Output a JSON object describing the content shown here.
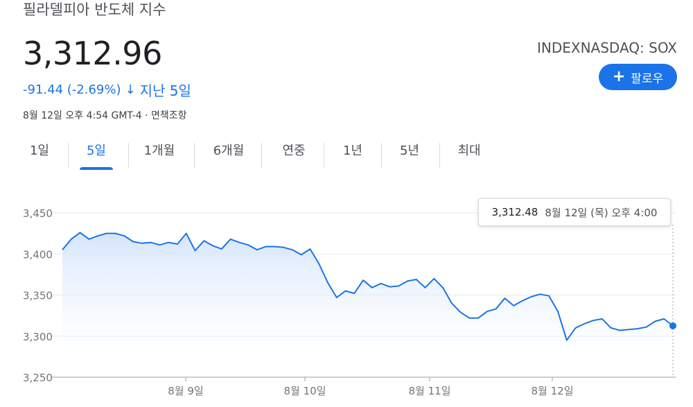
{
  "header": {
    "title": "필라델피아 반도체 지수",
    "price": "3,312.96",
    "change": "-91.44 (-2.69%)",
    "change_arrow": "↓",
    "change_period": "지난 5일",
    "meta": "8월 12일 오후 4:54 GMT-4 · 면책조항",
    "ticker": "INDEXNASDAQ: SOX",
    "follow_label": "팔로우"
  },
  "colors": {
    "accent": "#1a73e8",
    "line": "#1a73e8",
    "fill_top": "#d2e3fc",
    "grid": "#e8eaed"
  },
  "tabs": [
    {
      "label": "1일",
      "active": false
    },
    {
      "label": "5일",
      "active": true
    },
    {
      "label": "1개월",
      "active": false
    },
    {
      "label": "6개월",
      "active": false
    },
    {
      "label": "연중",
      "active": false
    },
    {
      "label": "1년",
      "active": false
    },
    {
      "label": "5년",
      "active": false
    },
    {
      "label": "최대",
      "active": false
    }
  ],
  "tooltip": {
    "value": "3,312.48",
    "date": "8월 12일 (목) 오후 4:00"
  },
  "chart_data": {
    "type": "area",
    "ylim": [
      3250,
      3450
    ],
    "yticks": [
      3450,
      3400,
      3350,
      3300,
      3250
    ],
    "ytick_labels": [
      "3,450",
      "3,400",
      "3,350",
      "3,300",
      "3,250"
    ],
    "xticks": [
      {
        "label": "8월 9일",
        "x": 13
      },
      {
        "label": "8월 10일",
        "x": 26
      },
      {
        "label": "8월 11일",
        "x": 39
      },
      {
        "label": "8월 12일",
        "x": 52
      }
    ],
    "xlim": [
      0,
      65
    ],
    "series": [
      {
        "values": [
          [
            0,
            3405
          ],
          [
            1,
            3418
          ],
          [
            2,
            3426
          ],
          [
            3,
            3418
          ],
          [
            4,
            3422
          ],
          [
            5,
            3425
          ],
          [
            6,
            3425
          ],
          [
            7,
            3422
          ],
          [
            8,
            3415
          ],
          [
            9,
            3413
          ],
          [
            10,
            3414
          ],
          [
            11,
            3411
          ],
          [
            12,
            3414
          ],
          [
            13,
            3412
          ],
          [
            14,
            3425
          ],
          [
            15,
            3404
          ],
          [
            16,
            3416
          ],
          [
            17,
            3410
          ],
          [
            18,
            3406
          ],
          [
            19,
            3418
          ],
          [
            20,
            3414
          ],
          [
            21,
            3411
          ],
          [
            22,
            3405
          ],
          [
            23,
            3409
          ],
          [
            24,
            3409
          ],
          [
            25,
            3408
          ],
          [
            26,
            3405
          ],
          [
            27,
            3399
          ],
          [
            28,
            3406
          ],
          [
            29,
            3388
          ],
          [
            30,
            3365
          ],
          [
            31,
            3347
          ],
          [
            32,
            3355
          ],
          [
            33,
            3352
          ],
          [
            34,
            3368
          ],
          [
            35,
            3359
          ],
          [
            36,
            3364
          ],
          [
            37,
            3360
          ],
          [
            38,
            3361
          ],
          [
            39,
            3367
          ],
          [
            40,
            3369
          ],
          [
            41,
            3359
          ],
          [
            42,
            3370
          ],
          [
            43,
            3359
          ],
          [
            44,
            3340
          ],
          [
            45,
            3329
          ],
          [
            46,
            3322
          ],
          [
            47,
            3322
          ],
          [
            48,
            3330
          ],
          [
            49,
            3333
          ],
          [
            50,
            3346
          ],
          [
            51,
            3337
          ],
          [
            52,
            3343
          ],
          [
            53,
            3348
          ],
          [
            54,
            3351
          ],
          [
            55,
            3349
          ],
          [
            56,
            3330
          ],
          [
            57,
            3295
          ],
          [
            58,
            3310
          ],
          [
            59,
            3315
          ],
          [
            60,
            3319
          ],
          [
            61,
            3321
          ],
          [
            62,
            3310
          ],
          [
            63,
            3307
          ],
          [
            64,
            3308
          ],
          [
            65,
            3309
          ],
          [
            66,
            3311
          ],
          [
            67,
            3318
          ],
          [
            68,
            3321
          ],
          [
            69,
            3312.48
          ]
        ]
      }
    ]
  }
}
